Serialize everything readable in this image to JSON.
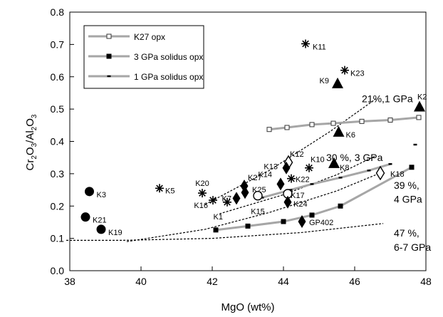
{
  "chart_data": {
    "type": "scatter",
    "xlabel": "MgO (wt%)",
    "ylabel": "Cr2O3/Al2O3",
    "ylabel_parts": {
      "a": "Cr",
      "a_sub": "2",
      "b": "O",
      "b_sub": "3",
      "slash": "/Al",
      "c_sub": "2",
      "d": "O",
      "d_sub": "3"
    },
    "xlim": [
      38,
      48
    ],
    "ylim": [
      0,
      0.8
    ],
    "x_ticks": [
      38,
      40,
      42,
      44,
      46,
      48
    ],
    "y_ticks": [
      0.0,
      0.1,
      0.2,
      0.3,
      0.4,
      0.5,
      0.6,
      0.7,
      0.8
    ],
    "x_tick_labels": [
      "38",
      "40",
      "42",
      "44",
      "46",
      "48"
    ],
    "y_tick_labels": [
      "0.0",
      "0.1",
      "0.2",
      "0.3",
      "0.4",
      "0.5",
      "0.6",
      "0.7",
      "0.8"
    ],
    "grid": false,
    "legend_position": "top-left",
    "series": [
      {
        "name": "K27 opx",
        "style": "line-open-square",
        "x": [
          43.6,
          44.1,
          44.8,
          45.4,
          46.2,
          47.0,
          47.8
        ],
        "y": [
          0.437,
          0.443,
          0.452,
          0.456,
          0.462,
          0.466,
          0.474
        ]
      },
      {
        "name": "3 GPa solidus opx",
        "style": "line-filled-square",
        "x": [
          42.1,
          43.0,
          44.0,
          44.8,
          45.6,
          47.6
        ],
        "y": [
          0.126,
          0.138,
          0.152,
          0.172,
          0.2,
          0.32
        ]
      },
      {
        "name": "1 GPa solidus opx",
        "style": "line-small-dash",
        "x": [
          43.4,
          44.2,
          44.8,
          45.6,
          46.4,
          47.0
        ],
        "y": [
          0.226,
          0.25,
          0.268,
          0.288,
          0.31,
          0.33
        ]
      }
    ],
    "extra_tick": {
      "x": 47.7,
      "y": 0.39
    },
    "samples": [
      {
        "label": "K11",
        "marker": "star",
        "x": 44.62,
        "y": 0.702
      },
      {
        "label": "K23",
        "marker": "star",
        "x": 45.72,
        "y": 0.62
      },
      {
        "label": "K9",
        "marker": "triangle",
        "x": 45.52,
        "y": 0.58
      },
      {
        "label": "K2",
        "marker": "triangle",
        "x": 47.82,
        "y": 0.508
      },
      {
        "label": "K6",
        "marker": "triangle",
        "x": 45.55,
        "y": 0.43
      },
      {
        "label": "K12",
        "marker": "diamond-open",
        "x": 44.14,
        "y": 0.335
      },
      {
        "label": "K13",
        "marker": "diamond",
        "x": 44.08,
        "y": 0.318
      },
      {
        "label": "K10",
        "marker": "star",
        "x": 44.72,
        "y": 0.318
      },
      {
        "label": "K8",
        "marker": "triangle",
        "x": 45.42,
        "y": 0.333
      },
      {
        "label": "K14",
        "marker": "diamond",
        "x": 43.92,
        "y": 0.268
      },
      {
        "label": "K22",
        "marker": "star",
        "x": 44.22,
        "y": 0.285
      },
      {
        "label": "K18",
        "marker": "diamond-open",
        "x": 46.72,
        "y": 0.302
      },
      {
        "label": "K20",
        "marker": "star",
        "x": 41.72,
        "y": 0.24
      },
      {
        "label": "K27",
        "marker": "diamond",
        "x": 42.9,
        "y": 0.262
      },
      {
        "label": "K25",
        "marker": "diamond",
        "x": 42.92,
        "y": 0.242
      },
      {
        "label": "K7",
        "marker": "diamond",
        "x": 42.68,
        "y": 0.224
      },
      {
        "label": "K16",
        "marker": "star",
        "x": 42.02,
        "y": 0.218
      },
      {
        "label": "K1",
        "marker": "star",
        "x": 42.42,
        "y": 0.212
      },
      {
        "label": "K15",
        "marker": "circle-open",
        "x": 43.28,
        "y": 0.232
      },
      {
        "label": "K17",
        "marker": "circle-open",
        "x": 44.12,
        "y": 0.238
      },
      {
        "label": "K24",
        "marker": "diamond",
        "x": 44.12,
        "y": 0.212
      },
      {
        "label": "GP402",
        "marker": "diamond",
        "x": 44.52,
        "y": 0.152
      },
      {
        "label": "K5",
        "marker": "star",
        "x": 40.52,
        "y": 0.255
      },
      {
        "label": "K3",
        "marker": "circle",
        "x": 38.55,
        "y": 0.245
      },
      {
        "label": "K21",
        "marker": "circle",
        "x": 38.44,
        "y": 0.166
      },
      {
        "label": "K19",
        "marker": "circle",
        "x": 38.88,
        "y": 0.128
      }
    ],
    "melting_curves": [
      {
        "x": [
          41.8,
          43.6,
          45.3,
          46.6
        ],
        "y": [
          0.205,
          0.31,
          0.43,
          0.532
        ]
      },
      {
        "x": [
          42.2,
          44.0,
          45.5,
          46.6
        ],
        "y": [
          0.176,
          0.235,
          0.297,
          0.356
        ]
      },
      {
        "x": [
          39.6,
          41.8,
          43.6,
          45.5,
          46.8
        ],
        "y": [
          0.09,
          0.128,
          0.18,
          0.247,
          0.306
        ]
      },
      {
        "x": [
          37.9,
          39.5,
          42.0,
          44.5,
          46.8
        ],
        "y": [
          0.094,
          0.094,
          0.1,
          0.118,
          0.146
        ]
      }
    ],
    "annotations": [
      {
        "text": "21%,1 GPa",
        "x": 46.2,
        "y": 0.532
      },
      {
        "text": "30 %, 3 GPa",
        "x": 45.2,
        "y": 0.35
      },
      {
        "text": "39 %,",
        "x": 47.1,
        "y": 0.265
      },
      {
        "text": "4 GPa",
        "x": 47.1,
        "y": 0.222
      },
      {
        "text": "47 %,",
        "x": 47.1,
        "y": 0.117
      },
      {
        "text": "6-7 GPa",
        "x": 47.1,
        "y": 0.073
      }
    ]
  }
}
